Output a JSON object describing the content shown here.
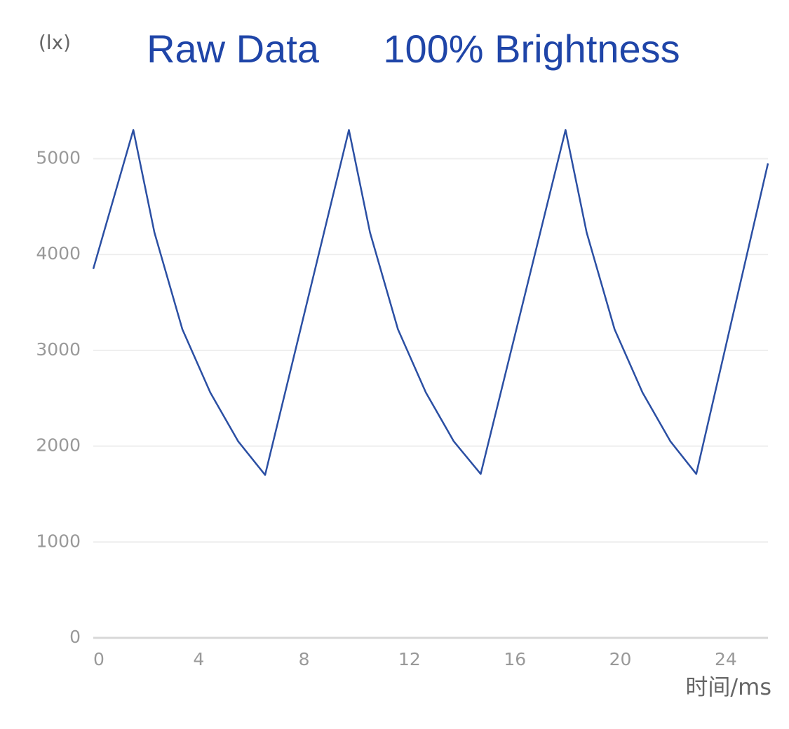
{
  "chart_data": {
    "type": "line",
    "title": "Raw Data",
    "subtitle": "100% Brightness",
    "y_label": "(lx)",
    "x_label": "时间/ms",
    "x": [
      0,
      1.52,
      2.32,
      3.38,
      4.44,
      5.5,
      6.52,
      9.7,
      10.5,
      11.56,
      12.62,
      13.68,
      14.7,
      17.92,
      18.72,
      19.78,
      20.84,
      21.9,
      22.88,
      25.6
    ],
    "series": [
      {
        "color": "#2b4fa3",
        "values": [
          3850,
          5300,
          4230,
          3220,
          2560,
          2050,
          1700,
          5300,
          4230,
          3220,
          2560,
          2050,
          1710,
          5300,
          4230,
          3220,
          2560,
          2050,
          1710,
          4950
        ]
      }
    ],
    "xlim": [
      0,
      25.6
    ],
    "ylim": [
      0,
      5500
    ],
    "xticks": [
      0,
      4,
      8,
      12,
      16,
      20,
      24
    ],
    "yticks": [
      0,
      1000,
      2000,
      3000,
      4000,
      5000
    ],
    "grid": true
  }
}
